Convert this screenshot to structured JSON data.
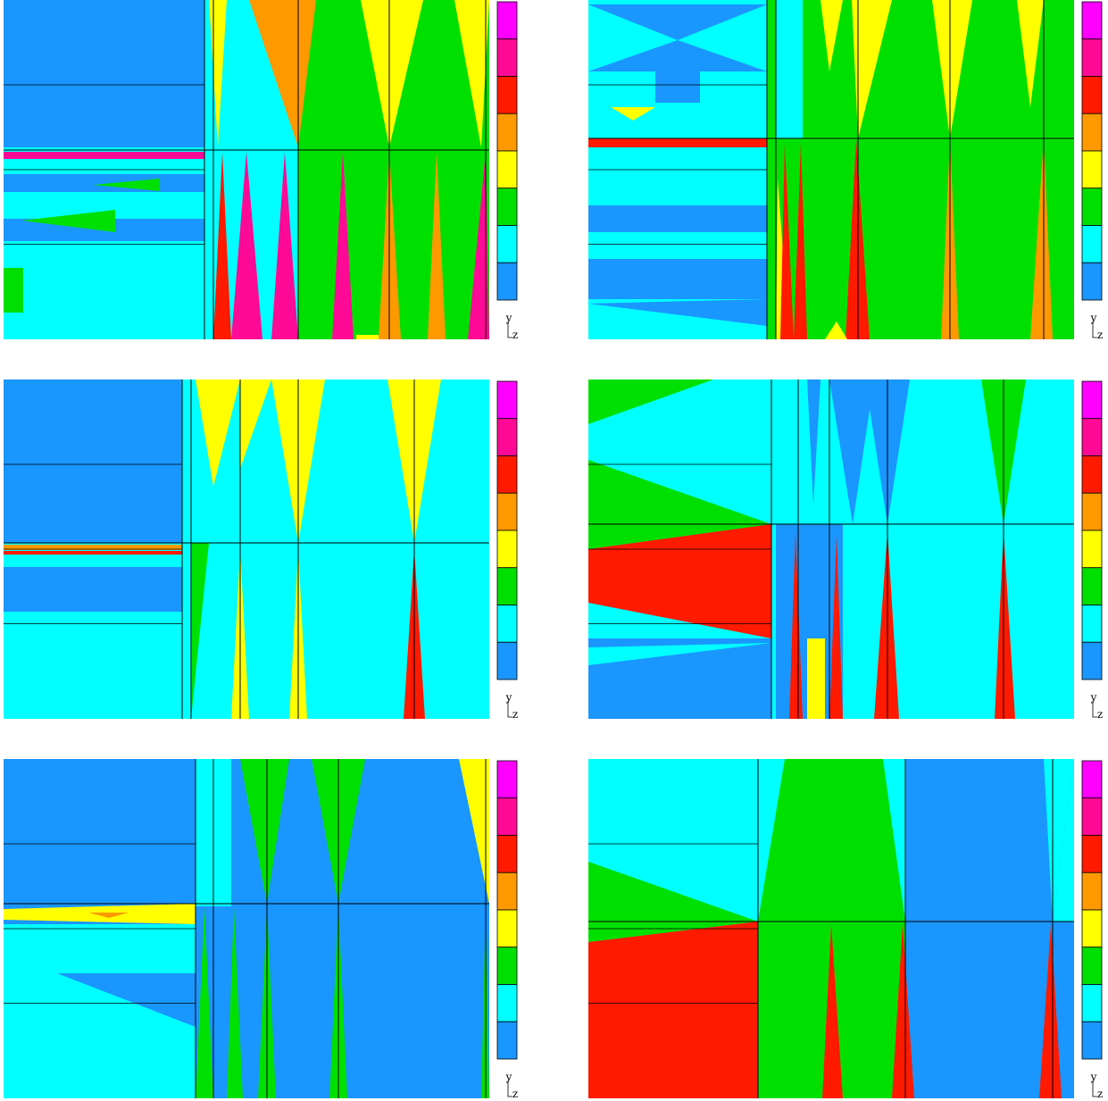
{
  "panels": [
    {
      "axis_y": "y",
      "axis_z": "z"
    },
    {
      "axis_y": "y",
      "axis_z": "z"
    },
    {
      "axis_y": "y",
      "axis_z": "z"
    },
    {
      "axis_y": "y",
      "axis_z": "z"
    },
    {
      "axis_y": "y",
      "axis_z": "z"
    },
    {
      "axis_y": "y",
      "axis_z": "z"
    }
  ]
}
